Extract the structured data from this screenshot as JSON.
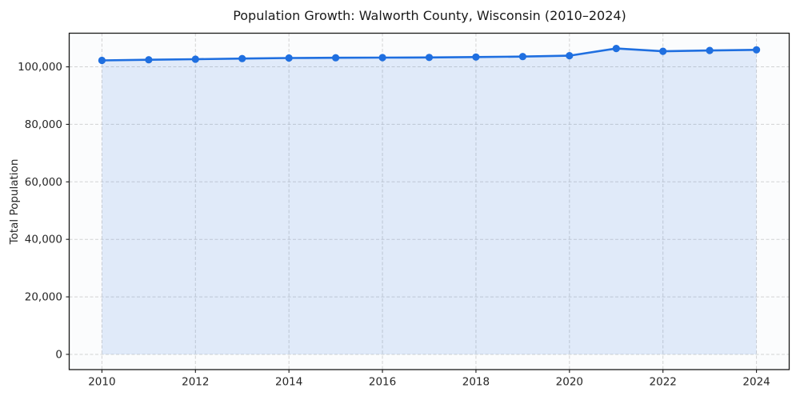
{
  "colors": {
    "figure_bg": "#ffffff",
    "plot_bg": "#fbfcfd",
    "line": "#1f6fe0",
    "marker": "#1f6fe0",
    "area_fill": "rgba(31,111,224,0.12)",
    "grid": "#c9c9c9",
    "spine": "#1a1a1a",
    "tick_text": "#262626"
  },
  "chart_data": {
    "type": "line",
    "title": "Population Growth: Walworth County, Wisconsin (2010–2024)",
    "xlabel": "",
    "ylabel": "Total Population",
    "series_name": "Total Population",
    "x": [
      2010,
      2011,
      2012,
      2013,
      2014,
      2015,
      2016,
      2017,
      2018,
      2019,
      2020,
      2021,
      2022,
      2023,
      2024
    ],
    "values": [
      102230,
      102460,
      102670,
      102870,
      103080,
      103170,
      103200,
      103270,
      103400,
      103580,
      103870,
      106390,
      105420,
      105690,
      105920
    ],
    "xticks": [
      2010,
      2012,
      2014,
      2016,
      2018,
      2020,
      2022,
      2024
    ],
    "yticks": [
      0,
      20000,
      40000,
      60000,
      80000,
      100000
    ],
    "xlim": [
      2009.3,
      2024.7
    ],
    "ylim": [
      -5300,
      111700
    ],
    "grid": true,
    "grid_style": "dashed",
    "marker": "circle",
    "area_fill": true,
    "legend": null
  }
}
